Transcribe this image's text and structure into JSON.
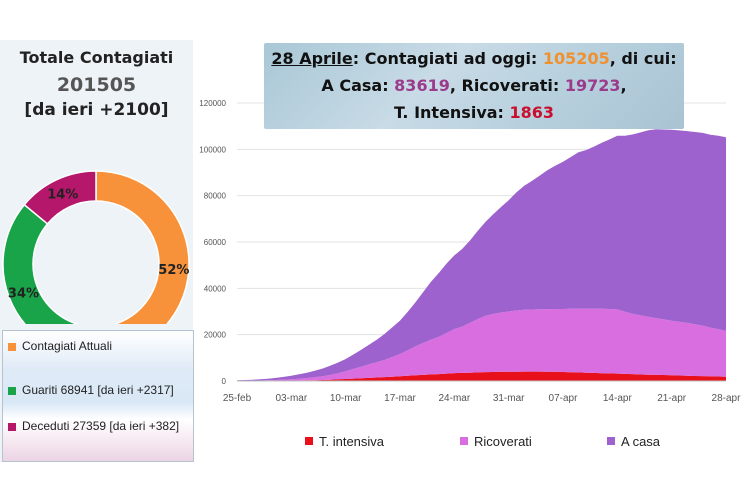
{
  "summary": {
    "title": "Totale Contagiati",
    "total": "201505",
    "delta": "[da ieri +2100]"
  },
  "donut": {
    "segments": [
      {
        "name": "Contagiati Attuali",
        "value": 52,
        "label": "52%",
        "color": "#f7923a"
      },
      {
        "name": "Guariti",
        "value": 34,
        "label": "34%",
        "color": "#1aa44a"
      },
      {
        "name": "Deceduti",
        "value": 14,
        "label": "14%",
        "color": "#b5176b"
      }
    ]
  },
  "donut_legend": [
    {
      "text": "Contagiati Attuali",
      "color": "#f7923a"
    },
    {
      "text": "Guariti 68941 [da ieri +2317]",
      "color": "#1aa44a"
    },
    {
      "text": "Deceduti 27359 [da ieri +382]",
      "color": "#b5176b"
    }
  ],
  "banner": {
    "date": "28 Aprile",
    "l1_label": ": Contagiati ad oggi: ",
    "l1_value": "105205",
    "l1_suffix": ", di cui:",
    "casa_label": "A Casa: ",
    "casa_value": "83619",
    "ric_label": ", Ricoverati: ",
    "ric_value": "19723",
    "comma": ",",
    "ti_label": "T. Intensiva: ",
    "ti_value": "1863"
  },
  "chart_data": {
    "type": "area",
    "stacked": true,
    "x": [
      "25-feb",
      "26-feb",
      "27-feb",
      "28-feb",
      "29-feb",
      "01-mar",
      "02-mar",
      "03-mar",
      "04-mar",
      "05-mar",
      "06-mar",
      "07-mar",
      "08-mar",
      "09-mar",
      "10-mar",
      "11-mar",
      "12-mar",
      "13-mar",
      "14-mar",
      "15-mar",
      "16-mar",
      "17-mar",
      "18-mar",
      "19-mar",
      "20-mar",
      "21-mar",
      "22-mar",
      "23-mar",
      "24-mar",
      "25-mar",
      "26-mar",
      "27-mar",
      "28-mar",
      "29-mar",
      "30-mar",
      "31-mar",
      "01-apr",
      "02-apr",
      "03-apr",
      "04-apr",
      "05-apr",
      "06-apr",
      "07-apr",
      "08-apr",
      "09-apr",
      "10-apr",
      "11-apr",
      "12-apr",
      "13-apr",
      "14-apr",
      "15-apr",
      "16-apr",
      "17-apr",
      "18-apr",
      "19-apr",
      "20-apr",
      "21-apr",
      "22-apr",
      "23-apr",
      "24-apr",
      "25-apr",
      "26-apr",
      "27-apr",
      "28-apr"
    ],
    "xticks": [
      "25-feb",
      "03-mar",
      "10-mar",
      "17-mar",
      "24-mar",
      "31-mar",
      "07-apr",
      "14-apr",
      "21-apr",
      "28-apr"
    ],
    "ylim": [
      0,
      120000
    ],
    "yticks": [
      0,
      20000,
      40000,
      60000,
      80000,
      100000,
      120000
    ],
    "series": [
      {
        "name": "T. intensiva",
        "color": "#e8101a",
        "values": [
          35,
          40,
          50,
          60,
          80,
          110,
          140,
          170,
          220,
          300,
          350,
          450,
          570,
          730,
          880,
          1030,
          1150,
          1330,
          1520,
          1670,
          1850,
          2060,
          2250,
          2500,
          2650,
          2860,
          3000,
          3200,
          3400,
          3490,
          3600,
          3730,
          3850,
          3900,
          3980,
          4020,
          4030,
          4050,
          4070,
          4060,
          4030,
          3980,
          3900,
          3800,
          3700,
          3600,
          3500,
          3380,
          3270,
          3190,
          3080,
          2960,
          2810,
          2730,
          2640,
          2570,
          2470,
          2380,
          2270,
          2170,
          2100,
          2010,
          1960,
          1863
        ]
      },
      {
        "name": "Ricoverati",
        "color": "#d86ee0",
        "values": [
          80,
          100,
          130,
          170,
          230,
          330,
          450,
          590,
          760,
          1000,
          1300,
          1600,
          2000,
          2600,
          3300,
          4200,
          5000,
          5900,
          6600,
          7400,
          8500,
          9600,
          11000,
          12500,
          13800,
          15000,
          16100,
          17500,
          19000,
          20000,
          21500,
          23000,
          24300,
          25000,
          25600,
          26000,
          26400,
          26700,
          26800,
          26900,
          27000,
          27100,
          27200,
          27400,
          27500,
          27600,
          27700,
          27800,
          27800,
          27700,
          26800,
          26000,
          25500,
          25000,
          24500,
          24000,
          23500,
          23200,
          22800,
          22300,
          21800,
          21000,
          20500,
          19723
        ]
      },
      {
        "name": "A casa",
        "color": "#9d62cd",
        "values": [
          200,
          300,
          400,
          500,
          700,
          900,
          1200,
          1500,
          1900,
          2300,
          2800,
          3300,
          4000,
          4600,
          5300,
          6200,
          7300,
          8400,
          9700,
          11200,
          12800,
          14400,
          16600,
          19000,
          22000,
          25000,
          27500,
          30000,
          31800,
          33500,
          35500,
          38000,
          40500,
          43000,
          45500,
          48000,
          51000,
          53500,
          55500,
          57700,
          60000,
          61800,
          63500,
          65500,
          67500,
          68500,
          70000,
          71700,
          73200,
          75000,
          76000,
          77500,
          79000,
          80500,
          81500,
          82000,
          82500,
          82600,
          82800,
          83000,
          83200,
          83300,
          83400,
          83619
        ]
      }
    ]
  }
}
